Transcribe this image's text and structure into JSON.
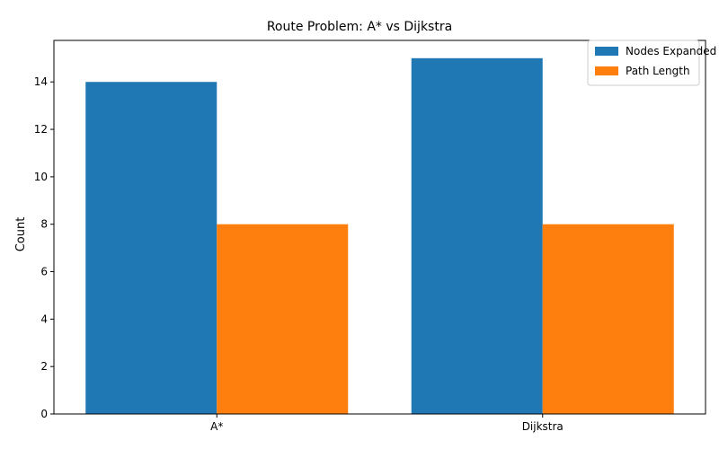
{
  "chart_data": {
    "type": "bar",
    "title": "Route Problem: A* vs Dijkstra",
    "xlabel": "",
    "ylabel": "Count",
    "categories": [
      "A*",
      "Dijkstra"
    ],
    "series": [
      {
        "name": "Nodes Expanded",
        "values": [
          14,
          15
        ],
        "color": "#1f77b4"
      },
      {
        "name": "Path Length",
        "values": [
          8,
          8
        ],
        "color": "#ff7f0e"
      }
    ],
    "ylim": [
      0,
      15.75
    ],
    "yticks": [
      0,
      2,
      4,
      6,
      8,
      10,
      12,
      14
    ],
    "grid": false,
    "legend_position": "top-right"
  }
}
